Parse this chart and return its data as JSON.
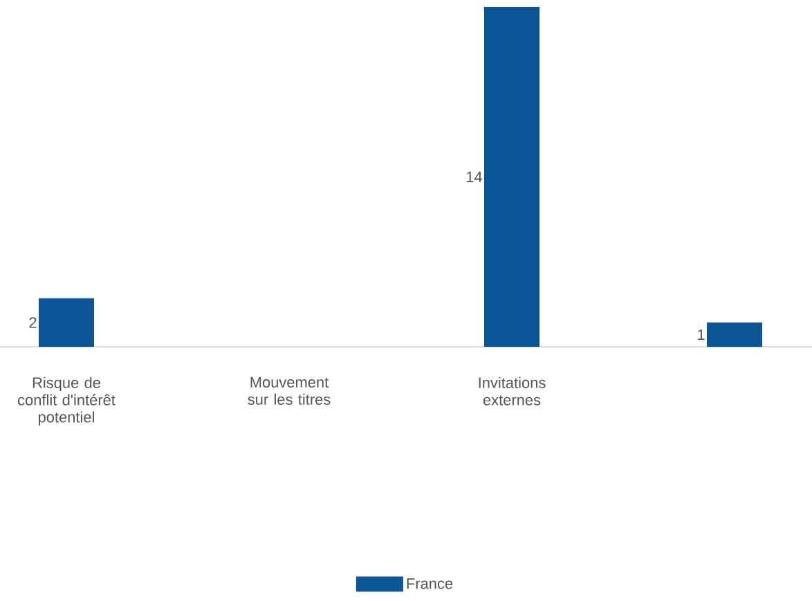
{
  "chart_data": {
    "type": "bar",
    "categories": [
      "Risque de conflit d'intérêt potentiel",
      "Mouvement sur les titres",
      "Invitations externes",
      null
    ],
    "series": [
      {
        "name": "France",
        "color": "#0b5594",
        "values": [
          2,
          0,
          14,
          1
        ],
        "value_labels": [
          "2",
          null,
          "14",
          "1"
        ]
      }
    ],
    "legend": "bottom",
    "grid": false
  }
}
